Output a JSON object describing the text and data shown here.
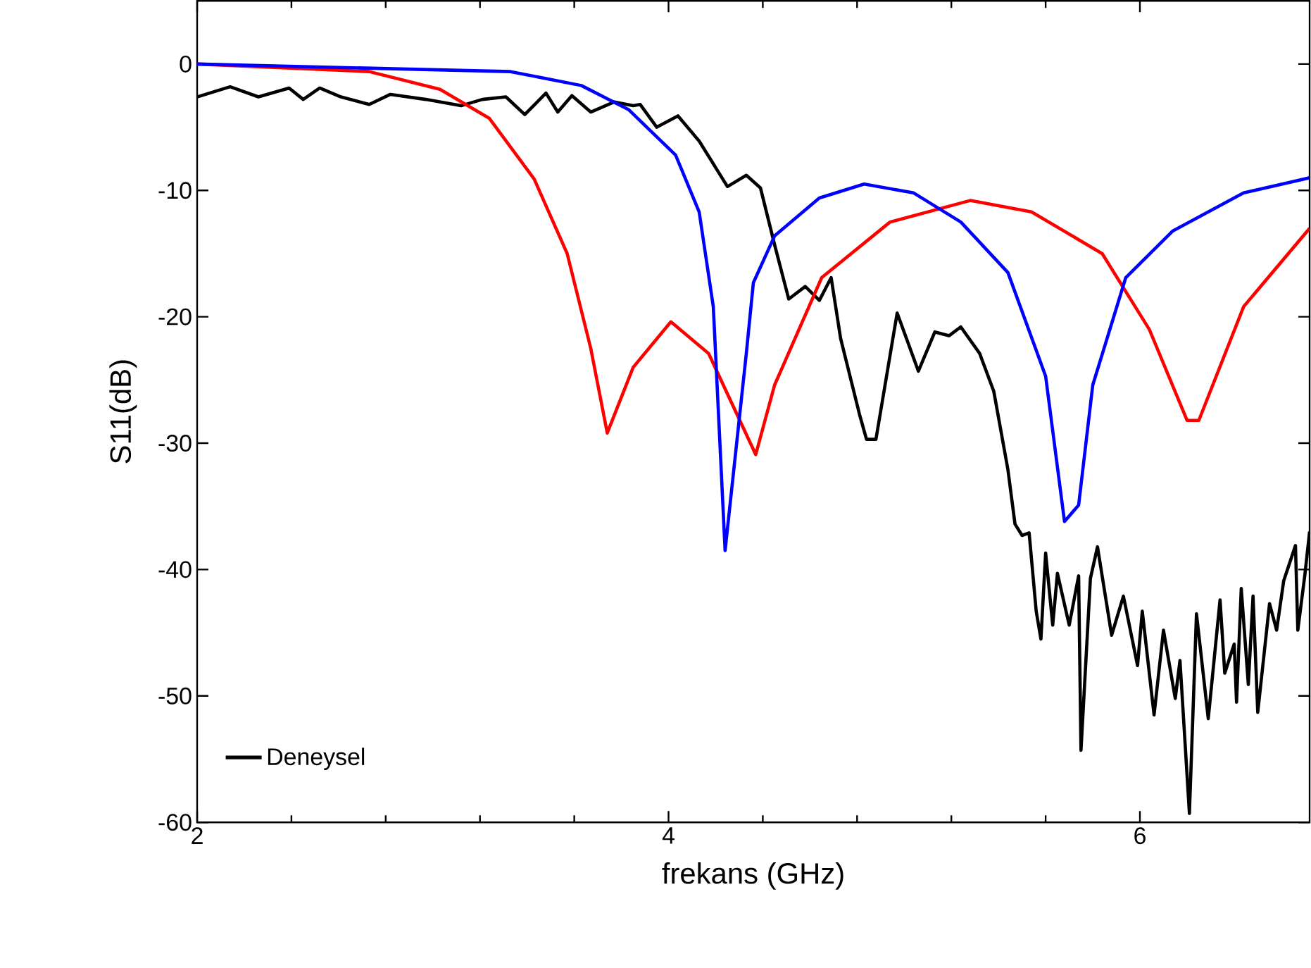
{
  "chart_data": {
    "type": "line",
    "xlabel": "frekans (GHz)",
    "ylabel": "S11(dB)",
    "xlim": [
      2,
      6.72
    ],
    "ylim": [
      -60,
      5
    ],
    "xticks": [
      2,
      4,
      6
    ],
    "yticks": [
      -60,
      -50,
      -40,
      -30,
      -20,
      -10,
      0
    ],
    "legend": "bottom left",
    "series": [
      {
        "name": "Deneysel",
        "color": "#000000",
        "x": [
          2,
          2.14,
          2.26,
          2.39,
          2.45,
          2.52,
          2.61,
          2.73,
          2.82,
          2.97,
          3.12,
          3.21,
          3.31,
          3.39,
          3.48,
          3.53,
          3.59,
          3.67,
          3.77,
          3.85,
          3.88,
          3.95,
          4.04,
          4.13,
          4.25,
          4.33,
          4.39,
          4.45,
          4.51,
          4.58,
          4.64,
          4.69,
          4.73,
          4.81,
          4.84,
          4.88,
          4.97,
          5.06,
          5.13,
          5.19,
          5.24,
          5.32,
          5.38,
          5.44,
          5.47,
          5.5,
          5.53,
          5.56,
          5.58,
          5.6,
          5.63,
          5.65,
          5.7,
          5.74,
          5.75,
          5.79,
          5.82,
          5.88,
          5.93,
          5.99,
          6.01,
          6.06,
          6.1,
          6.15,
          6.17,
          6.21,
          6.24,
          6.29,
          6.34,
          6.36,
          6.4,
          6.41,
          6.43,
          6.46,
          6.48,
          6.5,
          6.55,
          6.58,
          6.61,
          6.66,
          6.67,
          6.7,
          6.72
        ],
        "values": [
          -2.6,
          -1.8,
          -2.6,
          -1.9,
          -2.8,
          -1.9,
          -2.6,
          -3.2,
          -2.4,
          -2.8,
          -3.3,
          -2.8,
          -2.6,
          -4,
          -2.3,
          -3.8,
          -2.5,
          -3.8,
          -3,
          -3.3,
          -3.2,
          -5,
          -4.1,
          -6.1,
          -9.7,
          -8.8,
          -9.8,
          -14.3,
          -18.6,
          -17.6,
          -18.7,
          -16.9,
          -21.7,
          -27.7,
          -29.7,
          -29.7,
          -19.7,
          -24.3,
          -21.2,
          -21.5,
          -20.8,
          -22.9,
          -25.9,
          -32.1,
          -36.4,
          -37.3,
          -37.1,
          -43.3,
          -45.5,
          -38.7,
          -44.4,
          -40.3,
          -44.4,
          -40.5,
          -54.3,
          -40.7,
          -38.2,
          -45.2,
          -42.1,
          -47.6,
          -43.3,
          -51.5,
          -44.8,
          -50.2,
          -47.2,
          -59.3,
          -43.5,
          -51.8,
          -42.4,
          -48.2,
          -45.9,
          -50.5,
          -41.5,
          -49.1,
          -42.1,
          -51.3,
          -42.7,
          -44.8,
          -40.9,
          -38.1,
          -44.8,
          -40.4,
          -37
        ]
      },
      {
        "color": "#ff0000",
        "x": [
          2,
          2.73,
          3.03,
          3.24,
          3.43,
          3.57,
          3.67,
          3.74,
          3.85,
          4.01,
          4.17,
          4.37,
          4.45,
          4.65,
          4.94,
          5.28,
          5.54,
          5.84,
          6.04,
          6.2,
          6.25,
          6.44,
          6.72
        ],
        "values": [
          0,
          -0.6,
          -2,
          -4.3,
          -9.1,
          -15,
          -22.5,
          -29.2,
          -24,
          -20.4,
          -22.9,
          -30.9,
          -25.4,
          -16.9,
          -12.5,
          -10.8,
          -11.7,
          -15,
          -21,
          -28.2,
          -28.2,
          -19.2,
          -13
        ]
      },
      {
        "color": "#0000ff",
        "x": [
          2,
          3.33,
          3.63,
          3.83,
          4.03,
          4.13,
          4.19,
          4.24,
          4.33,
          4.36,
          4.45,
          4.64,
          4.83,
          5.04,
          5.24,
          5.44,
          5.6,
          5.68,
          5.74,
          5.8,
          5.94,
          6.14,
          6.44,
          6.72
        ],
        "values": [
          0,
          -0.6,
          -1.7,
          -3.6,
          -7.2,
          -11.7,
          -19.2,
          -38.5,
          -22.9,
          -17.3,
          -13.6,
          -10.6,
          -9.5,
          -10.2,
          -12.5,
          -16.5,
          -24.7,
          -36.2,
          -34.9,
          -25.4,
          -16.9,
          -13.2,
          -10.2,
          -9
        ]
      }
    ]
  }
}
